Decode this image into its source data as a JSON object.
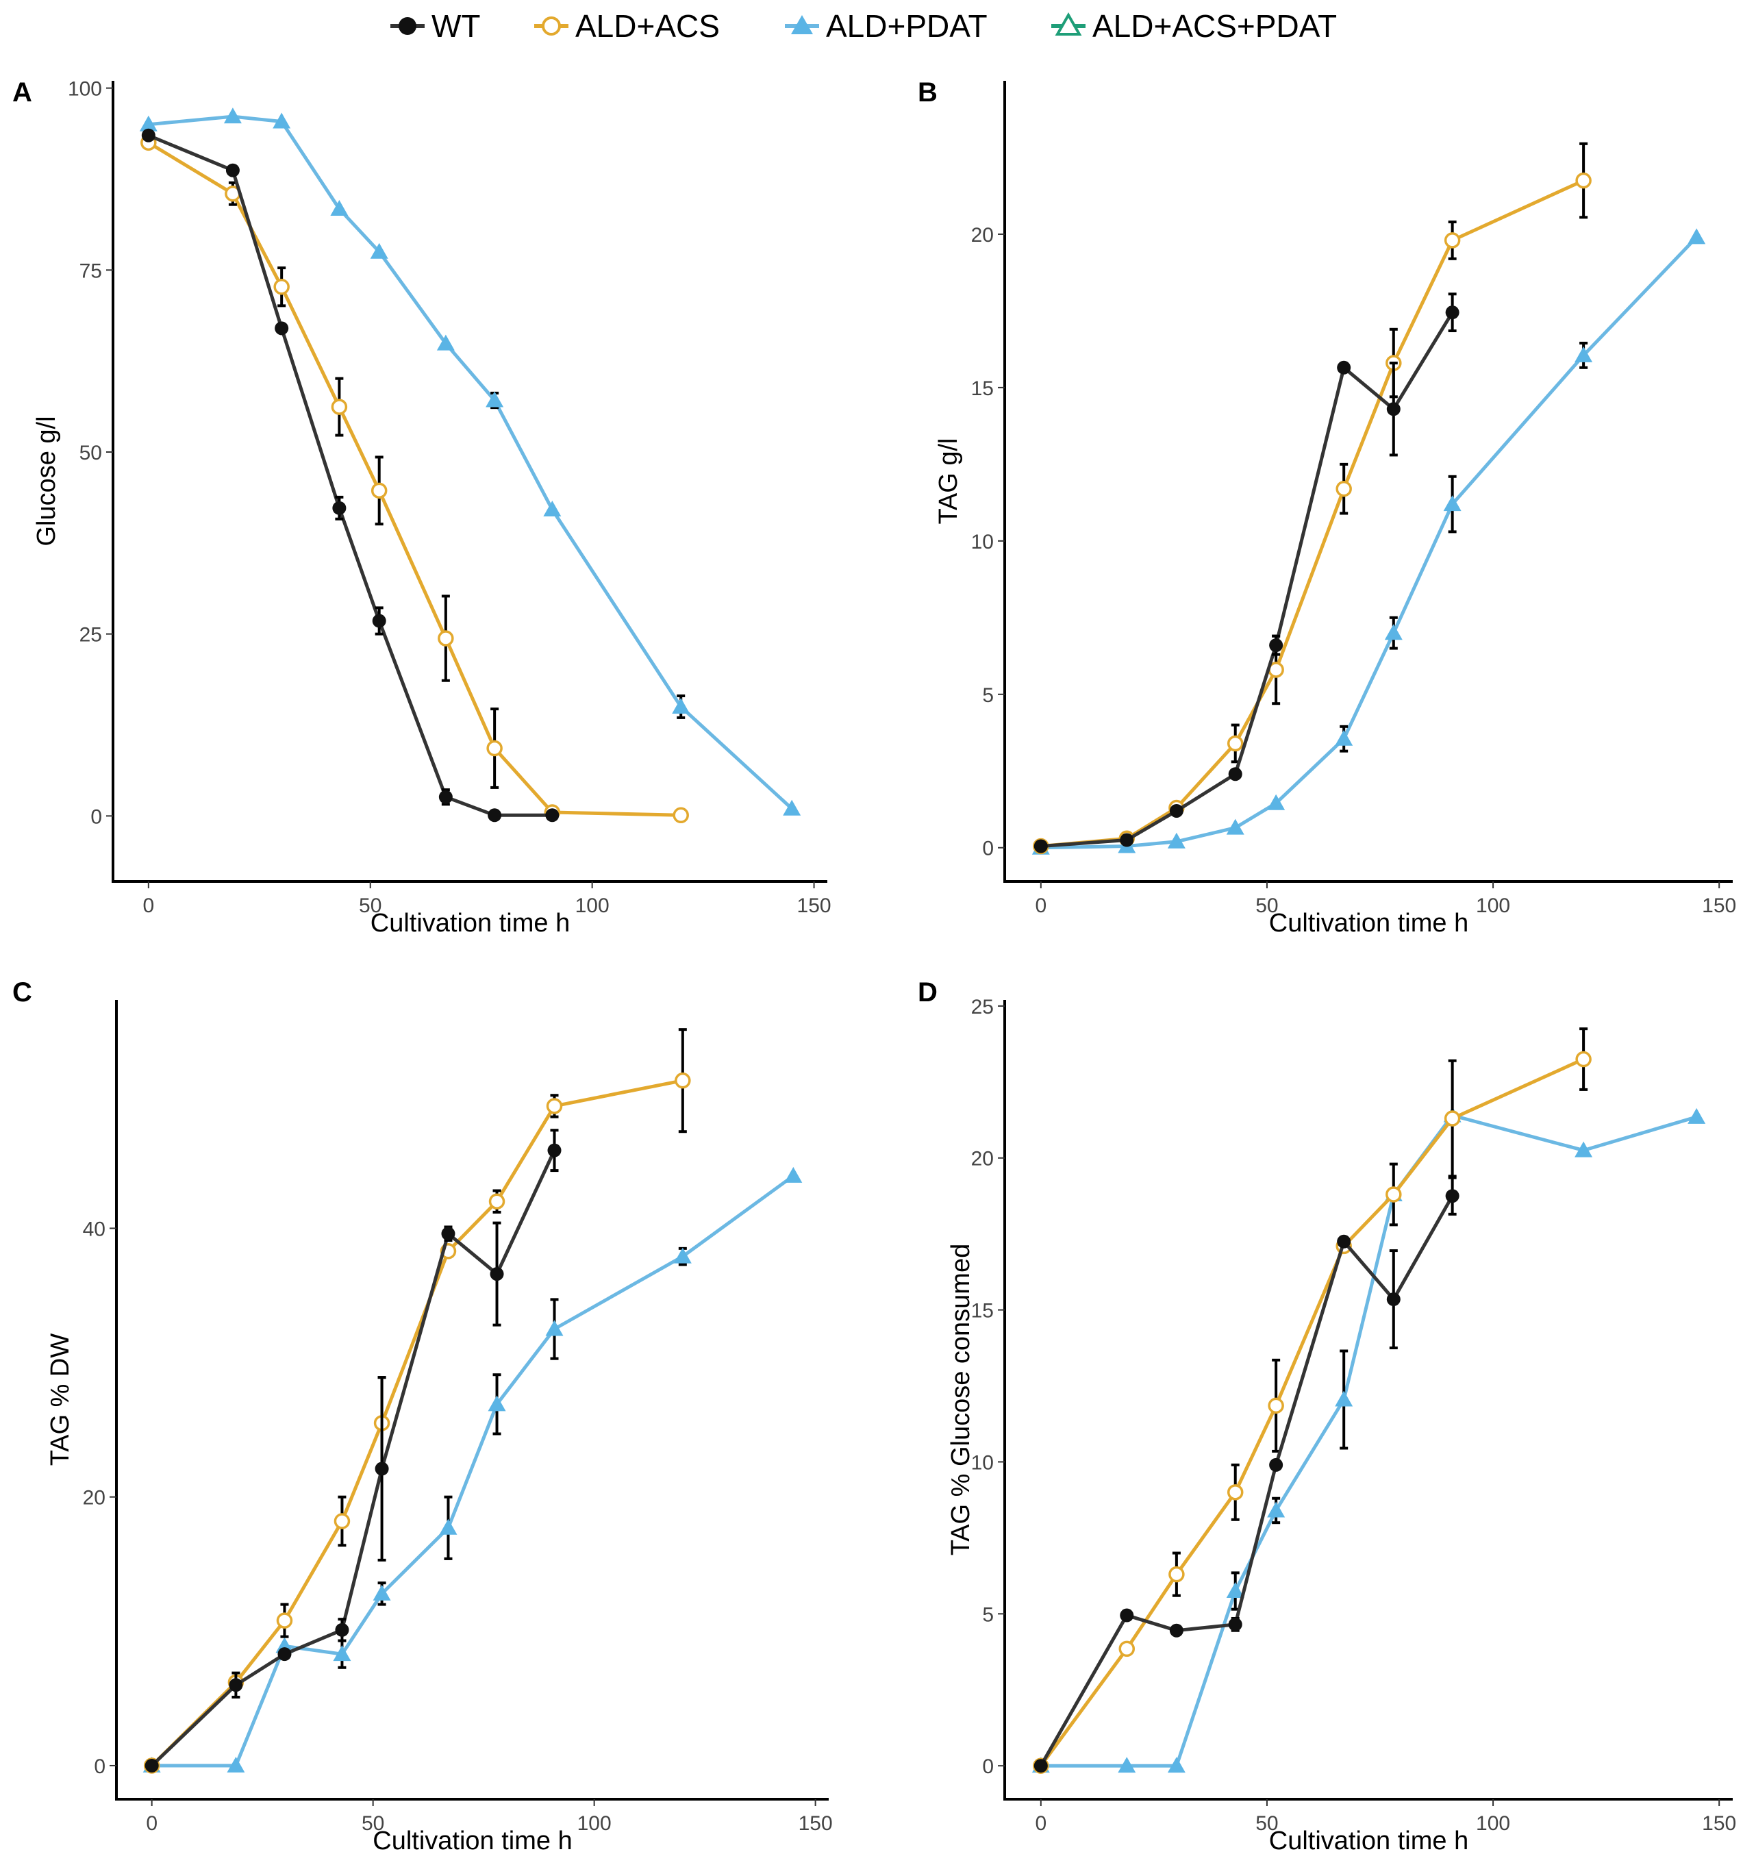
{
  "legend": {
    "items": [
      {
        "label": "WT",
        "color": "#333333",
        "marker": "filled-circle"
      },
      {
        "label": "ALD+ACS",
        "color": "#E3A92E",
        "marker": "open-circle"
      },
      {
        "label": "ALD+PDAT",
        "color": "#6BB8E3",
        "marker": "filled-triangle"
      },
      {
        "label": "ALD+ACS+PDAT",
        "color": "#1E9E78",
        "marker": "open-triangle"
      }
    ]
  },
  "chart_data": [
    {
      "type": "line",
      "panel": "A",
      "xlabel": "Cultivation time h",
      "ylabel": "Glucose g/l",
      "xlim": [
        -8,
        153
      ],
      "ylim": [
        -9,
        101
      ],
      "xticks": [
        0,
        50,
        100,
        150
      ],
      "yticks": [
        0,
        25,
        50,
        75,
        100
      ],
      "series": [
        {
          "name": "WT",
          "x": [
            0,
            19,
            30,
            43,
            52,
            67,
            78,
            91
          ],
          "y": [
            93.5,
            88.7,
            67,
            42.3,
            26.8,
            2.6,
            0.1,
            0.1
          ],
          "err": [
            0,
            0,
            0,
            1.5,
            1.8,
            1,
            0,
            0
          ]
        },
        {
          "name": "ALD+ACS",
          "x": [
            0,
            19,
            30,
            43,
            52,
            67,
            78,
            91,
            120
          ],
          "y": [
            92.5,
            85.5,
            72.7,
            56.2,
            44.7,
            24.4,
            9.3,
            0.5,
            0.1
          ],
          "err": [
            0,
            1.5,
            2.6,
            3.9,
            4.6,
            5.8,
            5.4,
            0,
            0
          ]
        },
        {
          "name": "ALD+PDAT",
          "x": [
            0,
            19,
            30,
            43,
            52,
            67,
            78,
            91,
            120,
            145
          ],
          "y": [
            95,
            96.1,
            95.4,
            83.4,
            77.5,
            64.9,
            57.1,
            42.1,
            15,
            1
          ],
          "err": [
            0,
            0,
            0,
            0,
            0,
            0,
            1,
            0,
            1.5,
            0
          ]
        }
      ]
    },
    {
      "type": "line",
      "panel": "B",
      "xlabel": "Cultivation time h",
      "ylabel": "TAG g/l",
      "xlim": [
        -8,
        153
      ],
      "ylim": [
        -1.1,
        25
      ],
      "xticks": [
        0,
        50,
        100,
        150
      ],
      "yticks": [
        0,
        5,
        10,
        15,
        20
      ],
      "series": [
        {
          "name": "WT",
          "x": [
            0,
            19,
            30,
            43,
            52,
            67,
            78,
            91
          ],
          "y": [
            0.05,
            0.25,
            1.2,
            2.4,
            6.6,
            15.65,
            14.3,
            17.45
          ],
          "err": [
            0,
            0,
            0,
            0,
            0.3,
            0,
            1.5,
            0.6
          ]
        },
        {
          "name": "ALD+ACS",
          "x": [
            0,
            19,
            30,
            43,
            52,
            67,
            78,
            91,
            120
          ],
          "y": [
            0.05,
            0.3,
            1.3,
            3.4,
            5.8,
            11.7,
            15.8,
            19.8,
            21.75
          ],
          "err": [
            0,
            0,
            0,
            0.6,
            1.1,
            0.8,
            1.1,
            0.6,
            1.2
          ]
        },
        {
          "name": "ALD+PDAT",
          "x": [
            0,
            19,
            30,
            43,
            52,
            67,
            78,
            91,
            120,
            145
          ],
          "y": [
            0,
            0.05,
            0.2,
            0.65,
            1.45,
            3.55,
            7,
            11.2,
            16.05,
            19.9
          ],
          "err": [
            0,
            0,
            0,
            0,
            0,
            0.4,
            0.5,
            0.9,
            0.4,
            0
          ]
        }
      ]
    },
    {
      "type": "line",
      "panel": "C",
      "xlabel": "Cultivation time h",
      "ylabel": "TAG % DW",
      "xlim": [
        -8,
        153
      ],
      "ylim": [
        -2.5,
        57
      ],
      "xticks": [
        0,
        50,
        100,
        150
      ],
      "yticks": [
        0,
        20,
        40
      ],
      "series": [
        {
          "name": "WT",
          "x": [
            0,
            19,
            30,
            43,
            52,
            67,
            78,
            91
          ],
          "y": [
            0,
            6,
            8.3,
            10.1,
            22.1,
            39.6,
            36.6,
            45.8
          ],
          "err": [
            0,
            0.9,
            0,
            0.8,
            6.8,
            0.5,
            3.8,
            1.5
          ]
        },
        {
          "name": "ALD+ACS",
          "x": [
            0,
            19,
            30,
            43,
            52,
            67,
            78,
            91,
            120
          ],
          "y": [
            0,
            6.2,
            10.8,
            18.2,
            25.5,
            38.3,
            42,
            49.1,
            51
          ],
          "err": [
            0,
            0,
            1.2,
            1.8,
            3.4,
            0,
            0.8,
            0.8,
            3.8
          ]
        },
        {
          "name": "ALD+PDAT",
          "x": [
            0,
            19,
            30,
            43,
            52,
            67,
            78,
            91,
            120,
            145
          ],
          "y": [
            0,
            0,
            8.9,
            8.3,
            12.8,
            17.7,
            26.9,
            32.5,
            37.9,
            43.9
          ],
          "err": [
            0,
            0,
            0,
            1,
            0.8,
            2.3,
            2.2,
            2.2,
            0.6,
            0
          ]
        }
      ]
    },
    {
      "type": "line",
      "panel": "D",
      "xlabel": "Cultivation time h",
      "ylabel": "TAG % Glucose consumed",
      "xlim": [
        -8,
        153
      ],
      "ylim": [
        -1.1,
        25.2
      ],
      "xticks": [
        0,
        50,
        100,
        150
      ],
      "yticks": [
        0,
        5,
        10,
        15,
        20,
        25
      ],
      "series": [
        {
          "name": "WT",
          "x": [
            0,
            19,
            30,
            43,
            52,
            67,
            78,
            91
          ],
          "y": [
            0,
            4.95,
            4.45,
            4.65,
            9.9,
            17.25,
            15.35,
            18.75
          ],
          "err": [
            0,
            0,
            0,
            0.2,
            0,
            0,
            1.6,
            0.6
          ]
        },
        {
          "name": "ALD+ACS",
          "x": [
            0,
            19,
            30,
            43,
            52,
            67,
            78,
            91,
            120
          ],
          "y": [
            0,
            3.85,
            6.3,
            9,
            11.85,
            17.1,
            18.8,
            21.3,
            23.25
          ],
          "err": [
            0,
            0,
            0.7,
            0.9,
            1.5,
            0,
            1,
            1.9,
            1
          ]
        },
        {
          "name": "ALD+PDAT",
          "x": [
            0,
            19,
            30,
            43,
            52,
            67,
            78,
            91,
            120,
            145
          ],
          "y": [
            0,
            0,
            0,
            5.75,
            8.4,
            12.05,
            18.8,
            21.4,
            20.25,
            21.35
          ],
          "err": [
            0,
            0,
            0,
            0.6,
            0.4,
            1.6,
            0,
            0,
            0,
            0
          ]
        }
      ]
    }
  ]
}
